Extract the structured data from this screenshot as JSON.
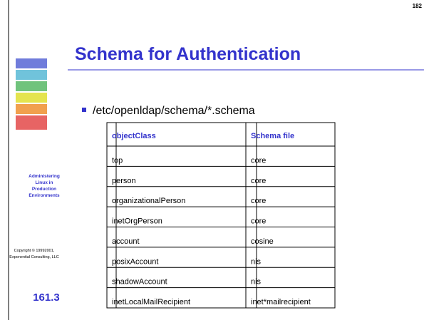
{
  "page_number": "182",
  "title": "Schema for Authentication",
  "sidebar": {
    "course": [
      "Administering",
      "Linux in",
      "Production",
      "Environments"
    ],
    "copyright": [
      "Copyright © 19992001,",
      "Exponential Consulting, LLC"
    ],
    "section": "161.3"
  },
  "bullet": "/etc/openldap/schema/*.schema",
  "table": {
    "columns": [
      "objectClass",
      "Schema file"
    ],
    "rows": [
      [
        "top",
        "core"
      ],
      [
        "person",
        "core"
      ],
      [
        "organizationalPerson",
        "core"
      ],
      [
        "inetOrgPerson",
        "core"
      ],
      [
        "account",
        "cosine"
      ],
      [
        "posixAccount",
        "nis"
      ],
      [
        "shadowAccount",
        "nis"
      ],
      [
        "inetLocalMailRecipient",
        "inet*mailrecipient"
      ]
    ]
  }
}
